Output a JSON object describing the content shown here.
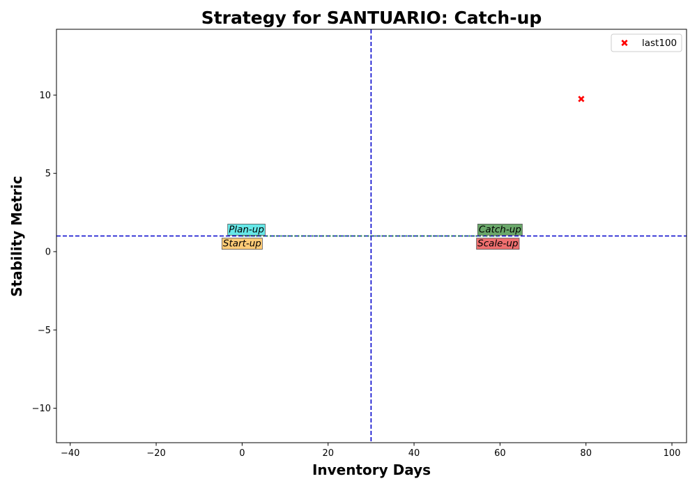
{
  "chart_data": {
    "type": "scatter",
    "title": "Strategy for SANTUARIO: Catch-up",
    "xlabel": "Inventory Days",
    "ylabel": "Stability Metric",
    "xlim": [
      -43.2,
      103.4
    ],
    "ylim": [
      -12.2,
      14.2
    ],
    "xticks": [
      -40,
      -20,
      0,
      20,
      40,
      60,
      80,
      100
    ],
    "xtick_labels": [
      "−40",
      "−20",
      "0",
      "20",
      "40",
      "60",
      "80",
      "100"
    ],
    "yticks": [
      -10,
      -5,
      0,
      5,
      10
    ],
    "ytick_labels": [
      "−10",
      "−5",
      "0",
      "5",
      "10"
    ],
    "grid": false,
    "series": [
      {
        "name": "last100",
        "marker": "x-filled",
        "color": "#ff0000",
        "points": [
          [
            78.9,
            9.75
          ]
        ]
      }
    ],
    "reference_lines": [
      {
        "orientation": "vertical",
        "value": 30,
        "style": "dashed",
        "color": "#0000cc"
      },
      {
        "orientation": "horizontal",
        "value": 1,
        "style": "dashed",
        "color": "#0000cc"
      },
      {
        "orientation": "horizontal-segment",
        "value": 1,
        "from": 0,
        "to": 60,
        "style": "dotted",
        "color": "#2e8b57"
      }
    ],
    "quadrant_labels": [
      {
        "text": "Plan-up",
        "x": 1,
        "y": 1.45,
        "bg": "#66e8e8"
      },
      {
        "text": "Start-up",
        "x": 0,
        "y": 0.55,
        "bg": "#ffcc77"
      },
      {
        "text": "Catch-up",
        "x": 60,
        "y": 1.45,
        "bg": "#6aa86a"
      },
      {
        "text": "Scale-up",
        "x": 59.5,
        "y": 0.55,
        "bg": "#ef6f6f"
      }
    ],
    "legend": {
      "position": "top-right",
      "entries": [
        "last100"
      ]
    }
  }
}
